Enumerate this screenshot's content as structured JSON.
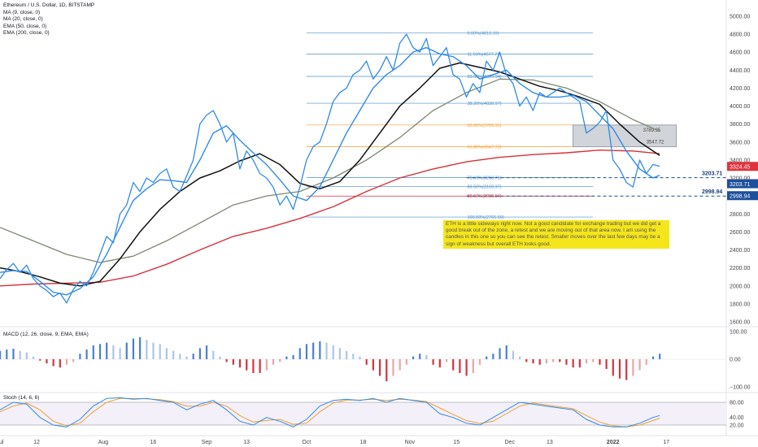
{
  "header": {
    "symbol_line": "Ethereum / U.S. Dollar, 1D, BITSTAMP",
    "indicators": [
      "MA (9, close, 0)",
      "MA (20, close, 0)",
      "EMA (50, close, 0)",
      "EMA (200, close, 0)"
    ]
  },
  "note_text": "ETH is a little sideways right now. Not a good candidate for exchange trading but we did get a good break out of the zone, a retest and we are moving out of that area now. I am using the candles in this one so you can see the retest. Smaller moves over the last few days may be a sign of weakness but overall ETH looks good.",
  "macd_label": "MACD (12, 26, close, 9, EMA, EMA)",
  "stoch_label": "Stoch (14, 6, 6)",
  "colors": {
    "price_line": "#2f8ae8",
    "ma20": "#111111",
    "ema50": "#7d8873",
    "ema200": "#d6313b",
    "fib_line": "#4a90c9",
    "fib_gold": "#f0a030",
    "macd_up": "#4a7fd4",
    "macd_down": "#d2353e",
    "stoch_k": "#2f8ae8",
    "stoch_d": "#f0a030",
    "price_tag": "#e0333e",
    "level_tag": "#1c4f9c",
    "note_bg": "#f5e61b"
  },
  "chart_data": [
    {
      "type": "line",
      "pane": "price",
      "y_ticks": [
        1600,
        1800,
        2000,
        2200,
        2400,
        2600,
        2800,
        3000,
        3200,
        3400,
        3600,
        3800,
        4000,
        4200,
        4400,
        4600,
        4800,
        5000
      ],
      "y_tick_labels": [
        "1600.00",
        "1800.00",
        "2000.00",
        "2200.00",
        "2400.00",
        "2600.00",
        "2800.00",
        "3000.00",
        "3200.00",
        "3400.00",
        "3600.00",
        "3800.00",
        "4000.00",
        "4200.00",
        "4400.00",
        "4600.00",
        "4800.00",
        "5000.00"
      ],
      "ylim": [
        1500,
        5100
      ],
      "x_ticks": [
        {
          "label": "Jul",
          "day": 0
        },
        {
          "label": "12",
          "day": 11
        },
        {
          "label": "Aug",
          "day": 31
        },
        {
          "label": "16",
          "day": 46
        },
        {
          "label": "Sep",
          "day": 62
        },
        {
          "label": "13",
          "day": 74
        },
        {
          "label": "Oct",
          "day": 92
        },
        {
          "label": "18",
          "day": 109
        },
        {
          "label": "Nov",
          "day": 123
        },
        {
          "label": "15",
          "day": 137
        },
        {
          "label": "Dec",
          "day": 153
        },
        {
          "label": "13",
          "day": 165
        },
        {
          "label": "2022",
          "day": 184
        },
        {
          "label": "17",
          "day": 200
        }
      ],
      "xlim": [
        0,
        218
      ],
      "series": [
        {
          "key": "price",
          "x": [
            0,
            2,
            4,
            6,
            8,
            10,
            12,
            14,
            16,
            18,
            20,
            22,
            24,
            26,
            28,
            30,
            32,
            34,
            36,
            38,
            40,
            42,
            44,
            46,
            48,
            50,
            52,
            54,
            56,
            58,
            60,
            62,
            64,
            66,
            68,
            70,
            72,
            74,
            76,
            78,
            80,
            82,
            84,
            86,
            88,
            90,
            92,
            94,
            96,
            98,
            100,
            102,
            104,
            106,
            108,
            110,
            112,
            114,
            116,
            118,
            120,
            122,
            124,
            126,
            128,
            130,
            132,
            134,
            136,
            138,
            140,
            142,
            144,
            146,
            148,
            150,
            152,
            154,
            156,
            158,
            160,
            162,
            164,
            166,
            168,
            170,
            172,
            174,
            176,
            178,
            180,
            182,
            184,
            186,
            188,
            190,
            192,
            194,
            196,
            198
          ],
          "y": [
            2080,
            2180,
            2250,
            2150,
            2230,
            2080,
            2000,
            1950,
            1880,
            1920,
            1810,
            1960,
            2050,
            2000,
            2150,
            2350,
            2550,
            2480,
            2800,
            2900,
            3150,
            3050,
            3200,
            3150,
            3250,
            3300,
            3100,
            3050,
            3220,
            3400,
            3800,
            3900,
            3950,
            3800,
            3600,
            3700,
            3300,
            3500,
            3400,
            3250,
            3200,
            3100,
            2900,
            3000,
            2850,
            3100,
            3400,
            3550,
            3600,
            3800,
            4050,
            4150,
            4200,
            4350,
            4400,
            4500,
            4300,
            4400,
            4550,
            4400,
            4700,
            4800,
            4650,
            4600,
            4750,
            4450,
            4550,
            4650,
            4350,
            4300,
            4100,
            4250,
            4150,
            4500,
            4400,
            4600,
            4350,
            4250,
            4000,
            4100,
            3950,
            4150,
            4100,
            4150,
            4200,
            4150,
            4100,
            4050,
            3700,
            3750,
            3820,
            3950,
            3400,
            3300,
            3150,
            3100,
            3400,
            3250,
            3350,
            3330
          ]
        },
        {
          "key": "ma9",
          "x": [
            0,
            4,
            8,
            12,
            16,
            20,
            24,
            28,
            32,
            36,
            40,
            44,
            48,
            52,
            56,
            60,
            64,
            68,
            72,
            76,
            80,
            84,
            88,
            92,
            96,
            100,
            104,
            108,
            112,
            116,
            120,
            124,
            128,
            132,
            136,
            140,
            144,
            148,
            152,
            156,
            160,
            164,
            168,
            172,
            176,
            180,
            184,
            188,
            192,
            196,
            198
          ],
          "y": [
            2150,
            2170,
            2160,
            2050,
            1930,
            1900,
            1970,
            2100,
            2350,
            2650,
            2950,
            3080,
            3180,
            3170,
            3150,
            3400,
            3700,
            3780,
            3620,
            3480,
            3350,
            3180,
            3000,
            2950,
            3100,
            3400,
            3700,
            3950,
            4200,
            4350,
            4450,
            4600,
            4650,
            4580,
            4550,
            4450,
            4300,
            4350,
            4400,
            4250,
            4150,
            4100,
            4100,
            4120,
            4050,
            3900,
            3750,
            3500,
            3300,
            3200,
            3230
          ]
        },
        {
          "key": "ma20",
          "x": [
            0,
            6,
            12,
            18,
            24,
            30,
            36,
            42,
            48,
            54,
            60,
            66,
            72,
            78,
            84,
            90,
            96,
            102,
            108,
            114,
            120,
            126,
            132,
            138,
            144,
            150,
            156,
            162,
            168,
            174,
            180,
            186,
            192,
            198
          ],
          "y": [
            2200,
            2160,
            2100,
            2030,
            2000,
            2050,
            2300,
            2600,
            2850,
            3050,
            3200,
            3280,
            3390,
            3470,
            3350,
            3140,
            3080,
            3160,
            3400,
            3700,
            4000,
            4200,
            4420,
            4480,
            4430,
            4380,
            4300,
            4220,
            4170,
            4100,
            4020,
            3800,
            3600,
            3450
          ]
        },
        {
          "key": "ema50",
          "x": [
            0,
            10,
            20,
            30,
            40,
            50,
            60,
            70,
            80,
            90,
            100,
            110,
            120,
            130,
            140,
            150,
            160,
            170,
            180,
            190,
            198
          ],
          "y": [
            2650,
            2500,
            2350,
            2260,
            2330,
            2500,
            2700,
            2900,
            3000,
            3050,
            3200,
            3400,
            3650,
            3950,
            4150,
            4300,
            4290,
            4200,
            4050,
            3850,
            3720
          ]
        },
        {
          "key": "ema200",
          "x": [
            0,
            10,
            20,
            30,
            40,
            50,
            60,
            70,
            80,
            90,
            100,
            110,
            120,
            130,
            140,
            150,
            160,
            170,
            180,
            190,
            198
          ],
          "y": [
            2000,
            2020,
            2030,
            2040,
            2110,
            2240,
            2400,
            2550,
            2640,
            2750,
            2880,
            3050,
            3200,
            3300,
            3380,
            3430,
            3460,
            3480,
            3510,
            3500,
            3470
          ]
        }
      ],
      "fib_levels": [
        {
          "label": "0.00%(4813.19)",
          "y": 4813.19
        },
        {
          "label": "11.50%(4577.71)",
          "y": 4577.71
        },
        {
          "label": "23.60%(4329.94)",
          "y": 4329.94
        },
        {
          "label": "38.20%(4030.97)",
          "y": 4030.97
        },
        {
          "label": "50.00%(3789.35)",
          "y": 3789.35
        },
        {
          "label": "61.80%(3547.72)",
          "y": 3547.72
        },
        {
          "label": "78.60%(3203.71)",
          "y": 3203.71
        },
        {
          "label": "83.50%(3103.37)",
          "y": 3103.37
        },
        {
          "label": "88.60%(2998.94)",
          "y": 2998.94
        },
        {
          "label": "100.00%(2765.50)",
          "y": 2765.5
        }
      ],
      "zone": {
        "y_top": 3789.35,
        "y_bottom": 3547.72,
        "top_label": "3789.35",
        "bottom_label": "3547.72"
      },
      "levels": [
        {
          "value": 3203.71,
          "label": "3203.71"
        },
        {
          "value": 2998.94,
          "label": "2998.94"
        }
      ],
      "price_tags": [
        {
          "value": 3324.45,
          "label": "3324.45"
        },
        {
          "value": 3205,
          "label": "21:33:43"
        },
        {
          "value": 3203.71,
          "label": "3203.71"
        },
        {
          "value": 2998.94,
          "label": "2998.94"
        }
      ]
    },
    {
      "type": "bar",
      "pane": "macd",
      "y_ticks": [
        100,
        0,
        -100
      ],
      "y_tick_labels": [
        "100.00",
        "0.00",
        "−100.00"
      ],
      "ylim": [
        -115,
        115
      ],
      "x": [
        0,
        2,
        4,
        6,
        8,
        10,
        12,
        14,
        16,
        18,
        20,
        22,
        24,
        26,
        28,
        30,
        32,
        34,
        36,
        38,
        40,
        42,
        44,
        46,
        48,
        50,
        52,
        54,
        56,
        58,
        60,
        62,
        64,
        66,
        68,
        70,
        72,
        74,
        76,
        78,
        80,
        82,
        84,
        86,
        88,
        90,
        92,
        94,
        96,
        98,
        100,
        102,
        104,
        106,
        108,
        110,
        112,
        114,
        116,
        118,
        120,
        122,
        124,
        126,
        128,
        130,
        132,
        134,
        136,
        138,
        140,
        142,
        144,
        146,
        148,
        150,
        152,
        154,
        156,
        158,
        160,
        162,
        164,
        166,
        168,
        170,
        172,
        174,
        176,
        178,
        180,
        182,
        184,
        186,
        188,
        190,
        192,
        194,
        196,
        198
      ],
      "values": [
        30,
        35,
        38,
        30,
        25,
        10,
        -5,
        -15,
        -25,
        -30,
        -20,
        -10,
        20,
        35,
        50,
        55,
        60,
        50,
        40,
        60,
        75,
        80,
        70,
        60,
        55,
        40,
        30,
        20,
        10,
        20,
        40,
        50,
        30,
        10,
        -10,
        -20,
        -30,
        -40,
        -50,
        -50,
        -40,
        -20,
        -10,
        10,
        15,
        40,
        55,
        60,
        65,
        60,
        50,
        40,
        30,
        20,
        10,
        -20,
        -40,
        -60,
        -80,
        -60,
        -40,
        -20,
        10,
        20,
        15,
        -20,
        -30,
        -10,
        -40,
        -50,
        -60,
        -50,
        -20,
        10,
        20,
        40,
        50,
        30,
        10,
        -10,
        -15,
        -20,
        -15,
        -10,
        -10,
        -20,
        -30,
        -30,
        -15,
        -10,
        -20,
        -35,
        -60,
        -70,
        -75,
        -60,
        -40,
        -20,
        10,
        20
      ]
    },
    {
      "type": "line",
      "pane": "stoch",
      "y_ticks": [
        80,
        40,
        20
      ],
      "y_tick_labels": [
        "80.00",
        "40.00",
        "20.00"
      ],
      "ylim": [
        0,
        100
      ],
      "hlines": [
        80,
        20
      ],
      "series": [
        {
          "key": "k",
          "x": [
            0,
            4,
            8,
            12,
            16,
            20,
            24,
            28,
            32,
            36,
            40,
            44,
            48,
            52,
            56,
            60,
            64,
            68,
            72,
            76,
            80,
            84,
            88,
            92,
            96,
            100,
            104,
            108,
            112,
            116,
            120,
            124,
            128,
            132,
            136,
            140,
            144,
            148,
            152,
            156,
            160,
            164,
            168,
            172,
            176,
            180,
            184,
            188,
            192,
            196,
            198
          ],
          "y": [
            60,
            80,
            75,
            40,
            20,
            15,
            35,
            70,
            90,
            92,
            88,
            90,
            85,
            80,
            60,
            75,
            85,
            60,
            30,
            20,
            40,
            30,
            15,
            35,
            70,
            85,
            88,
            85,
            90,
            80,
            90,
            85,
            80,
            50,
            40,
            25,
            20,
            40,
            60,
            80,
            75,
            70,
            65,
            60,
            35,
            20,
            15,
            15,
            25,
            40,
            45
          ]
        },
        {
          "key": "d",
          "x": [
            0,
            4,
            8,
            12,
            16,
            20,
            24,
            28,
            32,
            36,
            40,
            44,
            48,
            52,
            56,
            60,
            64,
            68,
            72,
            76,
            80,
            84,
            88,
            92,
            96,
            100,
            104,
            108,
            112,
            116,
            120,
            124,
            128,
            132,
            136,
            140,
            144,
            148,
            152,
            156,
            160,
            164,
            168,
            172,
            176,
            180,
            184,
            188,
            192,
            196,
            198
          ],
          "y": [
            55,
            70,
            78,
            60,
            30,
            18,
            25,
            55,
            80,
            90,
            90,
            89,
            87,
            82,
            70,
            70,
            80,
            70,
            45,
            28,
            32,
            35,
            22,
            25,
            55,
            78,
            86,
            86,
            88,
            85,
            88,
            86,
            82,
            65,
            48,
            32,
            24,
            30,
            50,
            70,
            78,
            73,
            68,
            63,
            45,
            28,
            18,
            15,
            20,
            32,
            38
          ]
        }
      ]
    }
  ]
}
